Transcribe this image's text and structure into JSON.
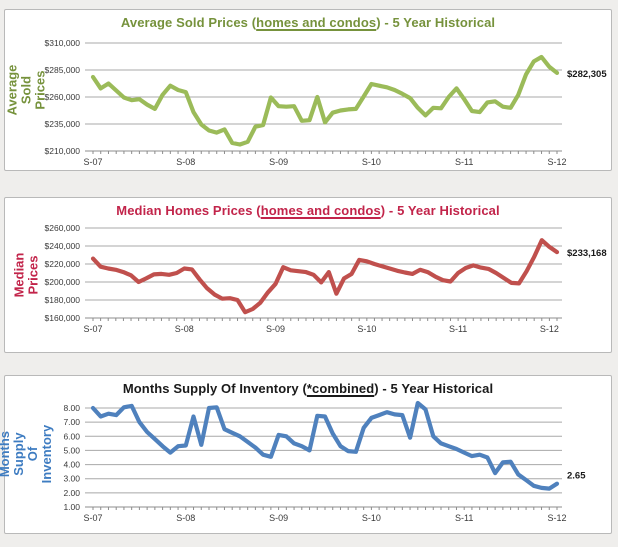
{
  "page": {
    "background": "#efeeec",
    "panel_background": "#ffffff",
    "panel_border": "#b9b9b9",
    "grid_color": "#a8a8a8",
    "axis_color": "#8c8c8c",
    "tick_text_color": "#3a3a3a",
    "end_label_color": "#1a1a1a"
  },
  "chart_data": [
    {
      "type": "line",
      "title": "Average Sold Prices (homes and condos) - 5 Year Historical",
      "title_parts": {
        "pre": "Average Sold Prices (",
        "underlined": "homes and condos",
        "post": ") - 5 Year Historical"
      },
      "title_color": "#76923C",
      "ylabel": "Average Sold Prices",
      "ylabel_color": "#76923C",
      "line_color": "#9BBB59",
      "grid": true,
      "legend": "none",
      "x_tick_labels": [
        "S-07",
        "S-08",
        "S-09",
        "S-10",
        "S-11",
        "S-12"
      ],
      "x_tick_every": 12,
      "x_frequency": "monthly",
      "ylim": [
        210000,
        310000
      ],
      "y_ticks": [
        210000,
        235000,
        260000,
        285000,
        310000
      ],
      "y_tick_labels": [
        "$210,000",
        "$235,000",
        "$260,000",
        "$285,000",
        "$310,000"
      ],
      "end_label": "$282,305",
      "end_value": 282305,
      "values": [
        278500,
        268000,
        272500,
        266000,
        259500,
        257000,
        258000,
        253000,
        249000,
        262000,
        270500,
        266500,
        264500,
        246000,
        234500,
        229000,
        227000,
        230000,
        217500,
        216000,
        218500,
        232500,
        234000,
        259500,
        251500,
        251000,
        251500,
        238000,
        238500,
        260000,
        236500,
        245500,
        247500,
        248500,
        249000,
        260500,
        272000,
        270500,
        269000,
        266500,
        263000,
        259000,
        250000,
        243000,
        250000,
        249500,
        260000,
        268000,
        258000,
        247000,
        246000,
        255000,
        256000,
        251000,
        250000,
        262000,
        281000,
        293000,
        297000,
        288000,
        282305
      ]
    },
    {
      "type": "line",
      "title": "Median Homes Prices (homes and condos) - 5 Year Historical",
      "title_parts": {
        "pre": "Median Homes Prices (",
        "underlined": "homes and condos",
        "post": ") - 5 Year Historical"
      },
      "title_color": "#C2244A",
      "ylabel": "Median Prices",
      "ylabel_color": "#C2244A",
      "line_color": "#C0504D",
      "grid": true,
      "legend": "none",
      "x_tick_labels": [
        "S-07",
        "S-08",
        "S-09",
        "S-10",
        "S-11",
        "S-12"
      ],
      "x_tick_every": 12,
      "x_frequency": "monthly",
      "ylim": [
        160000,
        260000
      ],
      "y_ticks": [
        160000,
        180000,
        200000,
        220000,
        240000,
        260000
      ],
      "y_tick_labels": [
        "$160,000",
        "$180,000",
        "$200,000",
        "$220,000",
        "$240,000",
        "$260,000"
      ],
      "end_label": "$233,168",
      "end_value": 233168,
      "values": [
        226000,
        217000,
        215000,
        213500,
        211000,
        207500,
        200000,
        204000,
        208500,
        209000,
        208000,
        210000,
        215000,
        214000,
        203000,
        193000,
        186000,
        181500,
        182000,
        180000,
        166500,
        170000,
        177000,
        188500,
        198000,
        216500,
        213000,
        212000,
        211000,
        208000,
        199500,
        211000,
        187000,
        204000,
        209000,
        224500,
        223000,
        220000,
        217500,
        215000,
        212500,
        210500,
        209000,
        213500,
        211000,
        206000,
        202000,
        200500,
        210000,
        215500,
        218500,
        216000,
        214500,
        210000,
        204500,
        199000,
        198500,
        212000,
        228000,
        246500,
        239000,
        233168
      ]
    },
    {
      "type": "line",
      "title": "Months Supply Of Inventory (*combined) - 5 Year Historical",
      "title_parts": {
        "pre": "Months Supply Of Inventory (",
        "underlined": "*combined",
        "post": ") - 5 Year Historical"
      },
      "title_color": "#1a1a1a",
      "ylabel": "Months Supply Of Inventory",
      "ylabel_color": "#3E7CC1",
      "line_color": "#4F81BD",
      "grid": true,
      "legend": "none",
      "x_tick_labels": [
        "S-07",
        "S-08",
        "S-09",
        "S-10",
        "S-11",
        "S-12"
      ],
      "x_tick_every": 12,
      "x_frequency": "monthly",
      "ylim": [
        1,
        8
      ],
      "y_ticks": [
        1,
        2,
        3,
        4,
        5,
        6,
        7,
        8
      ],
      "y_tick_labels": [
        "1.00",
        "2.00",
        "3.00",
        "4.00",
        "5.00",
        "6.00",
        "7.00",
        "8.00"
      ],
      "end_label": "2.65",
      "end_value": 2.65,
      "values": [
        8.0,
        7.4,
        7.6,
        7.5,
        8.05,
        8.15,
        7.0,
        6.3,
        5.8,
        5.3,
        4.85,
        5.3,
        5.35,
        7.4,
        5.4,
        8.0,
        8.05,
        6.5,
        6.25,
        6.0,
        5.6,
        5.2,
        4.7,
        4.55,
        6.1,
        6.0,
        5.5,
        5.3,
        5.0,
        7.45,
        7.4,
        6.2,
        5.3,
        4.95,
        4.9,
        6.6,
        7.3,
        7.5,
        7.7,
        7.55,
        7.5,
        5.9,
        8.35,
        7.9,
        6.0,
        5.5,
        5.3,
        5.1,
        4.85,
        4.6,
        4.7,
        4.5,
        3.4,
        4.15,
        4.2,
        3.3,
        2.9,
        2.5,
        2.35,
        2.3,
        2.65
      ]
    }
  ]
}
